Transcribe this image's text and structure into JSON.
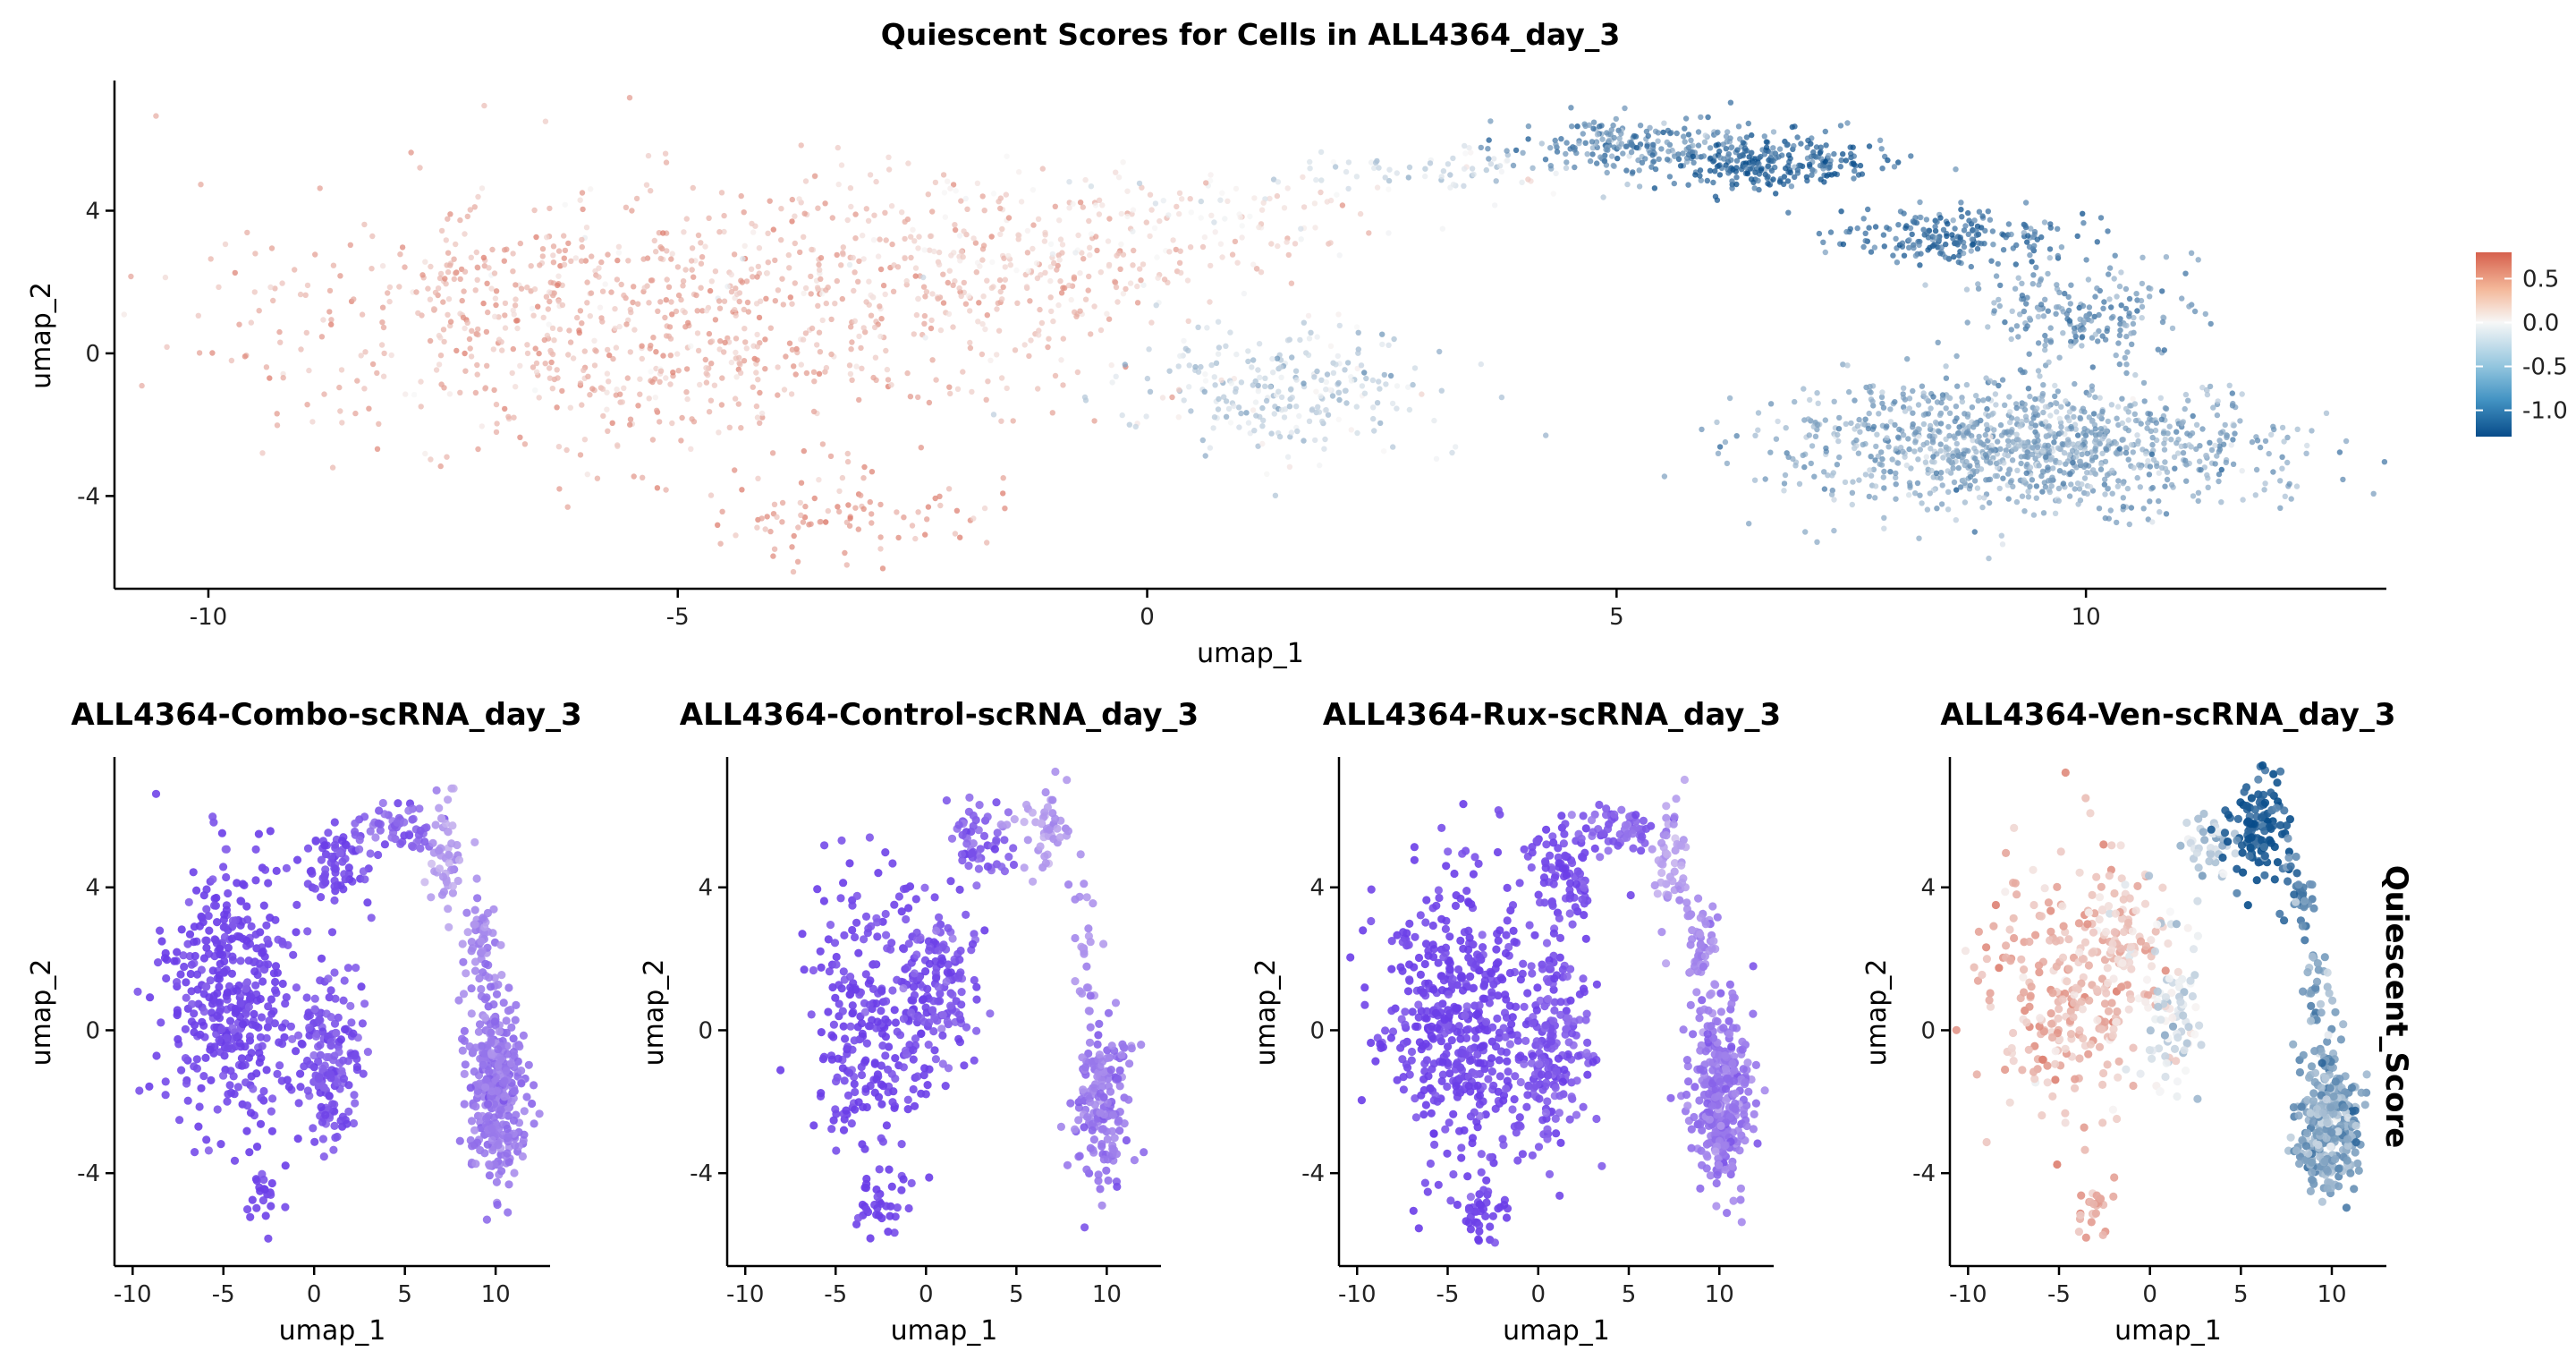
{
  "colors": {
    "diverging_low": "#084c8a",
    "diverging_mid": "#f7f7f7",
    "diverging_high": "#d6604d",
    "purple_low": "#6a3de8",
    "purple_high": "#ddd0ef",
    "axis": "#000000"
  },
  "legend": {
    "title": "Quiescent_Score",
    "ticks": [
      "0.5",
      "0.0",
      "-0.5",
      "-1.0"
    ],
    "tick_values": [
      0.5,
      0.0,
      -0.5,
      -1.0
    ],
    "range": [
      -1.3,
      0.8
    ]
  },
  "chart_data": [
    {
      "type": "scatter",
      "title": "Quiescent Scores for Cells in ALL4364_day_3",
      "xlabel": "umap_1",
      "ylabel": "umap_2",
      "xlim": [
        -11,
        13.2
      ],
      "ylim": [
        -6.6,
        7.6
      ],
      "xticks": [
        -10,
        -5,
        0,
        5,
        10
      ],
      "xtick_labels": [
        "-10",
        "-5",
        "0",
        "5",
        "10"
      ],
      "yticks": [
        -4,
        0,
        4
      ],
      "ytick_labels": [
        "-4",
        "0",
        "4"
      ],
      "color_scale": "diverging",
      "clusters": [
        {
          "cx": -5.5,
          "cy": 0.9,
          "sx": 2.1,
          "sy": 1.9,
          "n": 900,
          "score": 0.45
        },
        {
          "cx": -3.2,
          "cy": -4.5,
          "sx": 0.9,
          "sy": 0.6,
          "n": 90,
          "score": 0.6
        },
        {
          "cx": -1.5,
          "cy": 2.6,
          "sx": 1.3,
          "sy": 1.3,
          "n": 300,
          "score": 0.3
        },
        {
          "cx": 0.8,
          "cy": 3.9,
          "sx": 0.9,
          "sy": 0.7,
          "n": 90,
          "score": 0.15
        },
        {
          "cx": 1.5,
          "cy": -1.0,
          "sx": 0.8,
          "sy": 0.9,
          "n": 260,
          "score": -0.25
        },
        {
          "cx": 3.2,
          "cy": 5.1,
          "sx": 0.9,
          "sy": 0.3,
          "n": 70,
          "score": -0.2
        },
        {
          "cx": 5.3,
          "cy": 5.9,
          "sx": 0.7,
          "sy": 0.35,
          "n": 220,
          "score": -0.75
        },
        {
          "cx": 6.7,
          "cy": 5.3,
          "sx": 0.6,
          "sy": 0.35,
          "n": 240,
          "score": -1.05
        },
        {
          "cx": 8.5,
          "cy": 3.3,
          "sx": 0.6,
          "sy": 0.35,
          "n": 200,
          "score": -0.95
        },
        {
          "cx": 10.0,
          "cy": 1.2,
          "sx": 0.6,
          "sy": 0.8,
          "n": 200,
          "score": -0.7
        },
        {
          "cx": 9.4,
          "cy": -2.6,
          "sx": 1.3,
          "sy": 0.9,
          "n": 1100,
          "score": -0.55
        }
      ]
    },
    {
      "type": "scatter",
      "title": "ALL4364-Combo-scRNA_day_3",
      "xlabel": "umap_1",
      "ylabel": "umap_2",
      "xlim": [
        -11,
        13
      ],
      "ylim": [
        -6.6,
        7.6
      ],
      "xticks": [
        -10,
        -5,
        0,
        5,
        10
      ],
      "xtick_labels": [
        "-10",
        "-5",
        "0",
        "5",
        "10"
      ],
      "yticks": [
        -4,
        0,
        4
      ],
      "ytick_labels": [
        "-4",
        "0",
        "4"
      ],
      "color_scale": "purple",
      "clusters": [
        {
          "cx": -4.5,
          "cy": 1.0,
          "sx": 1.9,
          "sy": 1.8,
          "n": 420,
          "score": 0.95
        },
        {
          "cx": -3.0,
          "cy": -4.8,
          "sx": 0.6,
          "sy": 0.4,
          "n": 20,
          "score": 1.0
        },
        {
          "cx": 1.0,
          "cy": -0.8,
          "sx": 0.9,
          "sy": 1.2,
          "n": 160,
          "score": 0.85
        },
        {
          "cx": 1.0,
          "cy": 4.8,
          "sx": 0.9,
          "sy": 0.6,
          "n": 70,
          "score": 0.9
        },
        {
          "cx": 4.5,
          "cy": 5.7,
          "sx": 1.1,
          "sy": 0.35,
          "n": 60,
          "score": 0.75
        },
        {
          "cx": 7.2,
          "cy": 4.8,
          "sx": 0.5,
          "sy": 0.9,
          "n": 50,
          "score": 0.35
        },
        {
          "cx": 9.2,
          "cy": 2.2,
          "sx": 0.5,
          "sy": 0.9,
          "n": 60,
          "score": 0.5
        },
        {
          "cx": 10.0,
          "cy": -1.8,
          "sx": 0.8,
          "sy": 1.3,
          "n": 320,
          "score": 0.6
        }
      ]
    },
    {
      "type": "scatter",
      "title": "ALL4364-Control-scRNA_day_3",
      "xlabel": "umap_1",
      "ylabel": "umap_2",
      "xlim": [
        -11,
        13
      ],
      "ylim": [
        -6.6,
        7.6
      ],
      "xticks": [
        -10,
        -5,
        0,
        5,
        10
      ],
      "xtick_labels": [
        "-10",
        "-5",
        "0",
        "5",
        "10"
      ],
      "yticks": [
        -4,
        0,
        4
      ],
      "ytick_labels": [
        "-4",
        "0",
        "4"
      ],
      "color_scale": "purple",
      "clusters": [
        {
          "cx": -2.5,
          "cy": 0.5,
          "sx": 2.0,
          "sy": 2.0,
          "n": 300,
          "score": 0.95
        },
        {
          "cx": -3.0,
          "cy": -4.8,
          "sx": 0.7,
          "sy": 0.5,
          "n": 30,
          "score": 1.0
        },
        {
          "cx": 1.0,
          "cy": 1.0,
          "sx": 0.9,
          "sy": 1.2,
          "n": 110,
          "score": 0.85
        },
        {
          "cx": 3.0,
          "cy": 5.3,
          "sx": 1.0,
          "sy": 0.6,
          "n": 60,
          "score": 0.75
        },
        {
          "cx": 6.8,
          "cy": 5.6,
          "sx": 0.7,
          "sy": 0.6,
          "n": 50,
          "score": 0.35
        },
        {
          "cx": 9.0,
          "cy": 2.0,
          "sx": 0.5,
          "sy": 1.2,
          "n": 25,
          "score": 0.4
        },
        {
          "cx": 9.8,
          "cy": -2.0,
          "sx": 0.8,
          "sy": 1.1,
          "n": 170,
          "score": 0.6
        }
      ]
    },
    {
      "type": "scatter",
      "title": "ALL4364-Rux-scRNA_day_3",
      "xlabel": "umap_1",
      "ylabel": "umap_2",
      "xlim": [
        -11,
        13
      ],
      "ylim": [
        -6.6,
        7.6
      ],
      "xticks": [
        -10,
        -5,
        0,
        5,
        10
      ],
      "xtick_labels": [
        "-10",
        "-5",
        "0",
        "5",
        "10"
      ],
      "yticks": [
        -4,
        0,
        4
      ],
      "ytick_labels": [
        "-4",
        "0",
        "4"
      ],
      "color_scale": "purple",
      "clusters": [
        {
          "cx": -4.5,
          "cy": 0.3,
          "sx": 2.0,
          "sy": 1.9,
          "n": 480,
          "score": 0.95
        },
        {
          "cx": -3.0,
          "cy": -5.0,
          "sx": 0.7,
          "sy": 0.5,
          "n": 35,
          "score": 1.0
        },
        {
          "cx": 0.8,
          "cy": -0.5,
          "sx": 1.0,
          "sy": 1.3,
          "n": 200,
          "score": 0.85
        },
        {
          "cx": 1.5,
          "cy": 4.5,
          "sx": 1.0,
          "sy": 0.7,
          "n": 90,
          "score": 0.9
        },
        {
          "cx": 4.5,
          "cy": 5.6,
          "sx": 1.0,
          "sy": 0.35,
          "n": 60,
          "score": 0.75
        },
        {
          "cx": 7.3,
          "cy": 4.7,
          "sx": 0.5,
          "sy": 0.9,
          "n": 50,
          "score": 0.35
        },
        {
          "cx": 9.0,
          "cy": 2.3,
          "sx": 0.5,
          "sy": 0.9,
          "n": 55,
          "score": 0.5
        },
        {
          "cx": 10.2,
          "cy": -1.8,
          "sx": 0.8,
          "sy": 1.3,
          "n": 330,
          "score": 0.6
        }
      ]
    },
    {
      "type": "scatter",
      "title": "ALL4364-Ven-scRNA_day_3",
      "xlabel": "umap_1",
      "ylabel": "umap_2",
      "xlim": [
        -11,
        13
      ],
      "ylim": [
        -6.6,
        7.6
      ],
      "xticks": [
        -10,
        -5,
        0,
        5,
        10
      ],
      "xtick_labels": [
        "-10",
        "-5",
        "0",
        "5",
        "10"
      ],
      "yticks": [
        -4,
        0,
        4
      ],
      "ytick_labels": [
        "-4",
        "0",
        "4"
      ],
      "color_scale": "diverging",
      "clusters": [
        {
          "cx": -5.0,
          "cy": 1.0,
          "sx": 2.1,
          "sy": 1.8,
          "n": 240,
          "score": 0.4
        },
        {
          "cx": -3.0,
          "cy": -5.0,
          "sx": 0.5,
          "sy": 0.5,
          "n": 25,
          "score": 0.5
        },
        {
          "cx": -1.5,
          "cy": 2.5,
          "sx": 1.1,
          "sy": 1.1,
          "n": 100,
          "score": 0.25
        },
        {
          "cx": 1.2,
          "cy": 0.5,
          "sx": 0.9,
          "sy": 1.3,
          "n": 90,
          "score": -0.15
        },
        {
          "cx": 3.5,
          "cy": 5.2,
          "sx": 0.8,
          "sy": 0.4,
          "n": 40,
          "score": -0.3
        },
        {
          "cx": 6.0,
          "cy": 5.6,
          "sx": 0.8,
          "sy": 0.7,
          "n": 120,
          "score": -1.05
        },
        {
          "cx": 8.3,
          "cy": 3.6,
          "sx": 0.4,
          "sy": 0.7,
          "n": 40,
          "score": -0.8
        },
        {
          "cx": 9.0,
          "cy": 1.0,
          "sx": 0.4,
          "sy": 0.8,
          "n": 30,
          "score": -0.6
        },
        {
          "cx": 9.8,
          "cy": -2.6,
          "sx": 0.8,
          "sy": 1.0,
          "n": 340,
          "score": -0.55
        }
      ]
    }
  ]
}
